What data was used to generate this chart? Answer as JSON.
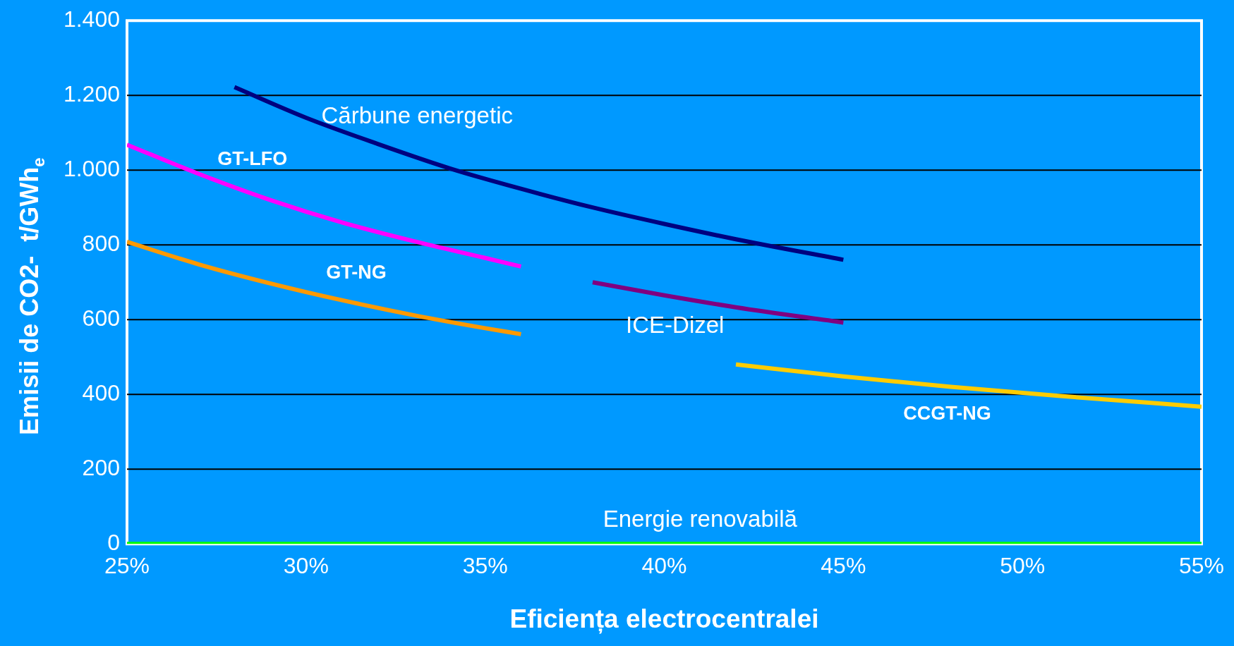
{
  "chart_data": {
    "type": "line",
    "xlabel": "Eficiența electrocentralei",
    "ylabel": "Emisii de CO2-  t/GWh$_{e}$",
    "xlim": [
      25,
      55
    ],
    "xticks": [
      {
        "value": 25,
        "label": "25%"
      },
      {
        "value": 30,
        "label": "30%"
      },
      {
        "value": 35,
        "label": "35%"
      },
      {
        "value": 40,
        "label": "40%"
      },
      {
        "value": 45,
        "label": "45%"
      },
      {
        "value": 50,
        "label": "50%"
      },
      {
        "value": 55,
        "label": "55%"
      }
    ],
    "ylim": [
      0,
      1400
    ],
    "yticks": [
      0,
      200,
      400,
      600,
      800,
      {
        "value": 1000,
        "label": "1.000"
      },
      {
        "value": 1200,
        "label": "1.200"
      },
      {
        "value": 1400,
        "label": "1.400"
      }
    ],
    "grid": "y",
    "legend": false,
    "marker": "none",
    "series": [
      {
        "name": "Cărbune energetic",
        "color": "#000080",
        "x": [
          28,
          30,
          32,
          34,
          36,
          38,
          40,
          42,
          45
        ],
        "values": [
          1222,
          1140,
          1070,
          1005,
          950,
          900,
          856,
          815,
          760
        ]
      },
      {
        "name": "GT-LFO",
        "color": "#ff00ff",
        "x": [
          25,
          27,
          29,
          31,
          33,
          35,
          36
        ],
        "values": [
          1068,
          990,
          920,
          860,
          810,
          765,
          742
        ]
      },
      {
        "name": "GT-NG",
        "color": "#ff9900",
        "x": [
          25,
          27,
          29,
          31,
          33,
          35,
          36
        ],
        "values": [
          808,
          748,
          697,
          652,
          612,
          577,
          561
        ]
      },
      {
        "name": "ICE-Dizel",
        "color": "#800080",
        "x": [
          38,
          40,
          42,
          45
        ],
        "values": [
          700,
          665,
          633,
          592
        ]
      },
      {
        "name": "CCGT-NG",
        "color": "#ffcc00",
        "x": [
          42,
          45,
          48,
          51,
          55
        ],
        "values": [
          480,
          448,
          420,
          396,
          367
        ]
      },
      {
        "name": "Energie renovabilă",
        "color": "#00ff00",
        "x": [
          25,
          55
        ],
        "values": [
          0,
          0
        ]
      }
    ]
  }
}
